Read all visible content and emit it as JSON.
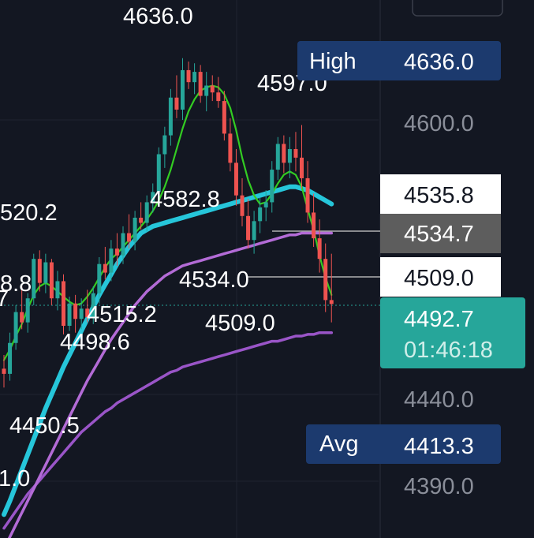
{
  "chart_data": {
    "type": "candlestick",
    "colors": {
      "background": "#131722",
      "up": "#26a69a",
      "down": "#ef5350",
      "ma_fast": "#33cc22",
      "ma_cyan": "#26c6da",
      "ma_purple": "#b36bd6",
      "ma_purple_dark": "#9a55c8",
      "axis_text": "#8a8e99",
      "last_price_bg": "#26a69a",
      "marker_bg": "#1c3a6e",
      "grid": "#1f2330"
    },
    "y_axis": {
      "ticks": [
        "4600.0",
        "4440.0",
        "4390.0"
      ],
      "tick_values": [
        4600,
        4440,
        4390
      ]
    },
    "price_tags": {
      "high": {
        "label": "High",
        "value": "4636.0"
      },
      "avg": {
        "label": "Avg",
        "value": "4413.3"
      },
      "level_1": "4535.8",
      "level_2": "4534.7",
      "level_3": "4509.0",
      "last_price": "4492.7",
      "countdown": "01:46:18"
    },
    "annotations": [
      "4636.0",
      "4597.0",
      "4582.8",
      "520.2",
      "8.8",
      "7",
      "4534.0",
      "4515.2",
      "4509.0",
      "4498.6",
      "4450.5",
      "1.0"
    ],
    "candles": [
      {
        "o": 4455,
        "h": 4463,
        "l": 4444,
        "c": 4452
      },
      {
        "o": 4452,
        "h": 4476,
        "l": 4448,
        "c": 4470
      },
      {
        "o": 4470,
        "h": 4492,
        "l": 4466,
        "c": 4488
      },
      {
        "o": 4488,
        "h": 4503,
        "l": 4478,
        "c": 4482
      },
      {
        "o": 4482,
        "h": 4499,
        "l": 4476,
        "c": 4496
      },
      {
        "o": 4496,
        "h": 4522,
        "l": 4492,
        "c": 4519
      },
      {
        "o": 4519,
        "h": 4524,
        "l": 4500,
        "c": 4505
      },
      {
        "o": 4505,
        "h": 4522,
        "l": 4499,
        "c": 4517
      },
      {
        "o": 4517,
        "h": 4519,
        "l": 4492,
        "c": 4496
      },
      {
        "o": 4496,
        "h": 4512,
        "l": 4489,
        "c": 4506
      },
      {
        "o": 4506,
        "h": 4510,
        "l": 4475,
        "c": 4480
      },
      {
        "o": 4480,
        "h": 4497,
        "l": 4477,
        "c": 4493
      },
      {
        "o": 4493,
        "h": 4498,
        "l": 4476,
        "c": 4484
      },
      {
        "o": 4484,
        "h": 4496,
        "l": 4478,
        "c": 4490
      },
      {
        "o": 4490,
        "h": 4501,
        "l": 4482,
        "c": 4485
      },
      {
        "o": 4485,
        "h": 4503,
        "l": 4481,
        "c": 4499
      },
      {
        "o": 4499,
        "h": 4520,
        "l": 4493,
        "c": 4516
      },
      {
        "o": 4516,
        "h": 4526,
        "l": 4507,
        "c": 4511
      },
      {
        "o": 4511,
        "h": 4530,
        "l": 4506,
        "c": 4525
      },
      {
        "o": 4525,
        "h": 4534,
        "l": 4515,
        "c": 4521
      },
      {
        "o": 4521,
        "h": 4538,
        "l": 4516,
        "c": 4534
      },
      {
        "o": 4534,
        "h": 4545,
        "l": 4525,
        "c": 4529
      },
      {
        "o": 4529,
        "h": 4547,
        "l": 4524,
        "c": 4543
      },
      {
        "o": 4543,
        "h": 4552,
        "l": 4536,
        "c": 4540
      },
      {
        "o": 4540,
        "h": 4556,
        "l": 4535,
        "c": 4552
      },
      {
        "o": 4552,
        "h": 4563,
        "l": 4546,
        "c": 4558
      },
      {
        "o": 4558,
        "h": 4584,
        "l": 4553,
        "c": 4580
      },
      {
        "o": 4580,
        "h": 4596,
        "l": 4572,
        "c": 4591
      },
      {
        "o": 4591,
        "h": 4618,
        "l": 4585,
        "c": 4613
      },
      {
        "o": 4613,
        "h": 4626,
        "l": 4601,
        "c": 4606
      },
      {
        "o": 4606,
        "h": 4636,
        "l": 4600,
        "c": 4629
      },
      {
        "o": 4629,
        "h": 4634,
        "l": 4618,
        "c": 4622
      },
      {
        "o": 4622,
        "h": 4633,
        "l": 4615,
        "c": 4628
      },
      {
        "o": 4628,
        "h": 4632,
        "l": 4610,
        "c": 4614
      },
      {
        "o": 4614,
        "h": 4628,
        "l": 4605,
        "c": 4620
      },
      {
        "o": 4620,
        "h": 4626,
        "l": 4611,
        "c": 4616
      },
      {
        "o": 4616,
        "h": 4625,
        "l": 4607,
        "c": 4611
      },
      {
        "o": 4611,
        "h": 4617,
        "l": 4588,
        "c": 4592
      },
      {
        "o": 4592,
        "h": 4601,
        "l": 4570,
        "c": 4575
      },
      {
        "o": 4575,
        "h": 4583,
        "l": 4550,
        "c": 4556
      },
      {
        "o": 4556,
        "h": 4566,
        "l": 4538,
        "c": 4544
      },
      {
        "o": 4544,
        "h": 4554,
        "l": 4525,
        "c": 4530
      },
      {
        "o": 4530,
        "h": 4547,
        "l": 4522,
        "c": 4541
      },
      {
        "o": 4541,
        "h": 4555,
        "l": 4534,
        "c": 4549
      },
      {
        "o": 4549,
        "h": 4559,
        "l": 4541,
        "c": 4552
      },
      {
        "o": 4552,
        "h": 4576,
        "l": 4546,
        "c": 4571
      },
      {
        "o": 4571,
        "h": 4590,
        "l": 4565,
        "c": 4586
      },
      {
        "o": 4586,
        "h": 4591,
        "l": 4569,
        "c": 4575
      },
      {
        "o": 4575,
        "h": 4590,
        "l": 4566,
        "c": 4583
      },
      {
        "o": 4583,
        "h": 4593,
        "l": 4570,
        "c": 4578
      },
      {
        "o": 4578,
        "h": 4597,
        "l": 4560,
        "c": 4566
      },
      {
        "o": 4566,
        "h": 4576,
        "l": 4540,
        "c": 4546
      },
      {
        "o": 4546,
        "h": 4557,
        "l": 4526,
        "c": 4531
      },
      {
        "o": 4531,
        "h": 4542,
        "l": 4511,
        "c": 4519
      },
      {
        "o": 4519,
        "h": 4528,
        "l": 4488,
        "c": 4495
      },
      {
        "o": 4495,
        "h": 4522,
        "l": 4482,
        "c": 4492.7
      }
    ],
    "ma_fast": [
      4460,
      4466,
      4474,
      4481,
      4490,
      4498,
      4503,
      4505,
      4503,
      4500,
      4497,
      4494,
      4492,
      4493,
      4497,
      4502,
      4508,
      4514,
      4519,
      4522,
      4526,
      4530,
      4534,
      4538,
      4542,
      4547,
      4553,
      4561,
      4571,
      4583,
      4595,
      4605,
      4612,
      4617,
      4619,
      4620,
      4619,
      4615,
      4607,
      4594,
      4578,
      4565,
      4556,
      4551,
      4552,
      4557,
      4563,
      4568,
      4570,
      4568,
      4561,
      4548,
      4536,
      4521,
      4508,
      4498
    ],
    "ma_cyan": [
      4370,
      4378,
      4387,
      4396,
      4405,
      4414,
      4423,
      4432,
      4440,
      4448,
      4456,
      4463,
      4470,
      4477,
      4484,
      4491,
      4498,
      4504,
      4510,
      4516,
      4521,
      4526,
      4530,
      4534,
      4536,
      4538,
      4539,
      4540,
      4541,
      4542,
      4543,
      4544,
      4545,
      4546,
      4547,
      4548,
      4549,
      4550,
      4551,
      4552,
      4553,
      4554,
      4555,
      4556,
      4557,
      4558,
      4559,
      4560,
      4561,
      4561,
      4560,
      4559,
      4557,
      4555,
      4553,
      4551
    ],
    "ma_purple": [
      4350,
      4357,
      4364,
      4371,
      4378,
      4385,
      4392,
      4399,
      4406,
      4413,
      4420,
      4427,
      4434,
      4441,
      4448,
      4454,
      4460,
      4466,
      4472,
      4477,
      4482,
      4487,
      4492,
      4496,
      4500,
      4503,
      4506,
      4509,
      4511,
      4513,
      4515,
      4516,
      4517,
      4518,
      4519,
      4520,
      4521,
      4522,
      4523,
      4524,
      4525,
      4526,
      4527,
      4528,
      4529,
      4530,
      4531,
      4532,
      4533,
      4533,
      4534,
      4534,
      4534,
      4534,
      4534,
      4534
    ],
    "ma_purple_dark": [
      4362,
      4367,
      4372,
      4377,
      4382,
      4386,
      4390,
      4394,
      4398,
      4402,
      4406,
      4410,
      4414,
      4418,
      4421,
      4424,
      4427,
      4430,
      4432,
      4435,
      4437,
      4439,
      4441,
      4443,
      4445,
      4447,
      4449,
      4451,
      4453,
      4454,
      4456,
      4457,
      4458,
      4459,
      4460,
      4461,
      4462,
      4463,
      4464,
      4465,
      4466,
      4467,
      4468,
      4469,
      4470,
      4471,
      4471,
      4472,
      4473,
      4474,
      4474,
      4475,
      4475,
      4476,
      4476,
      4476
    ]
  }
}
